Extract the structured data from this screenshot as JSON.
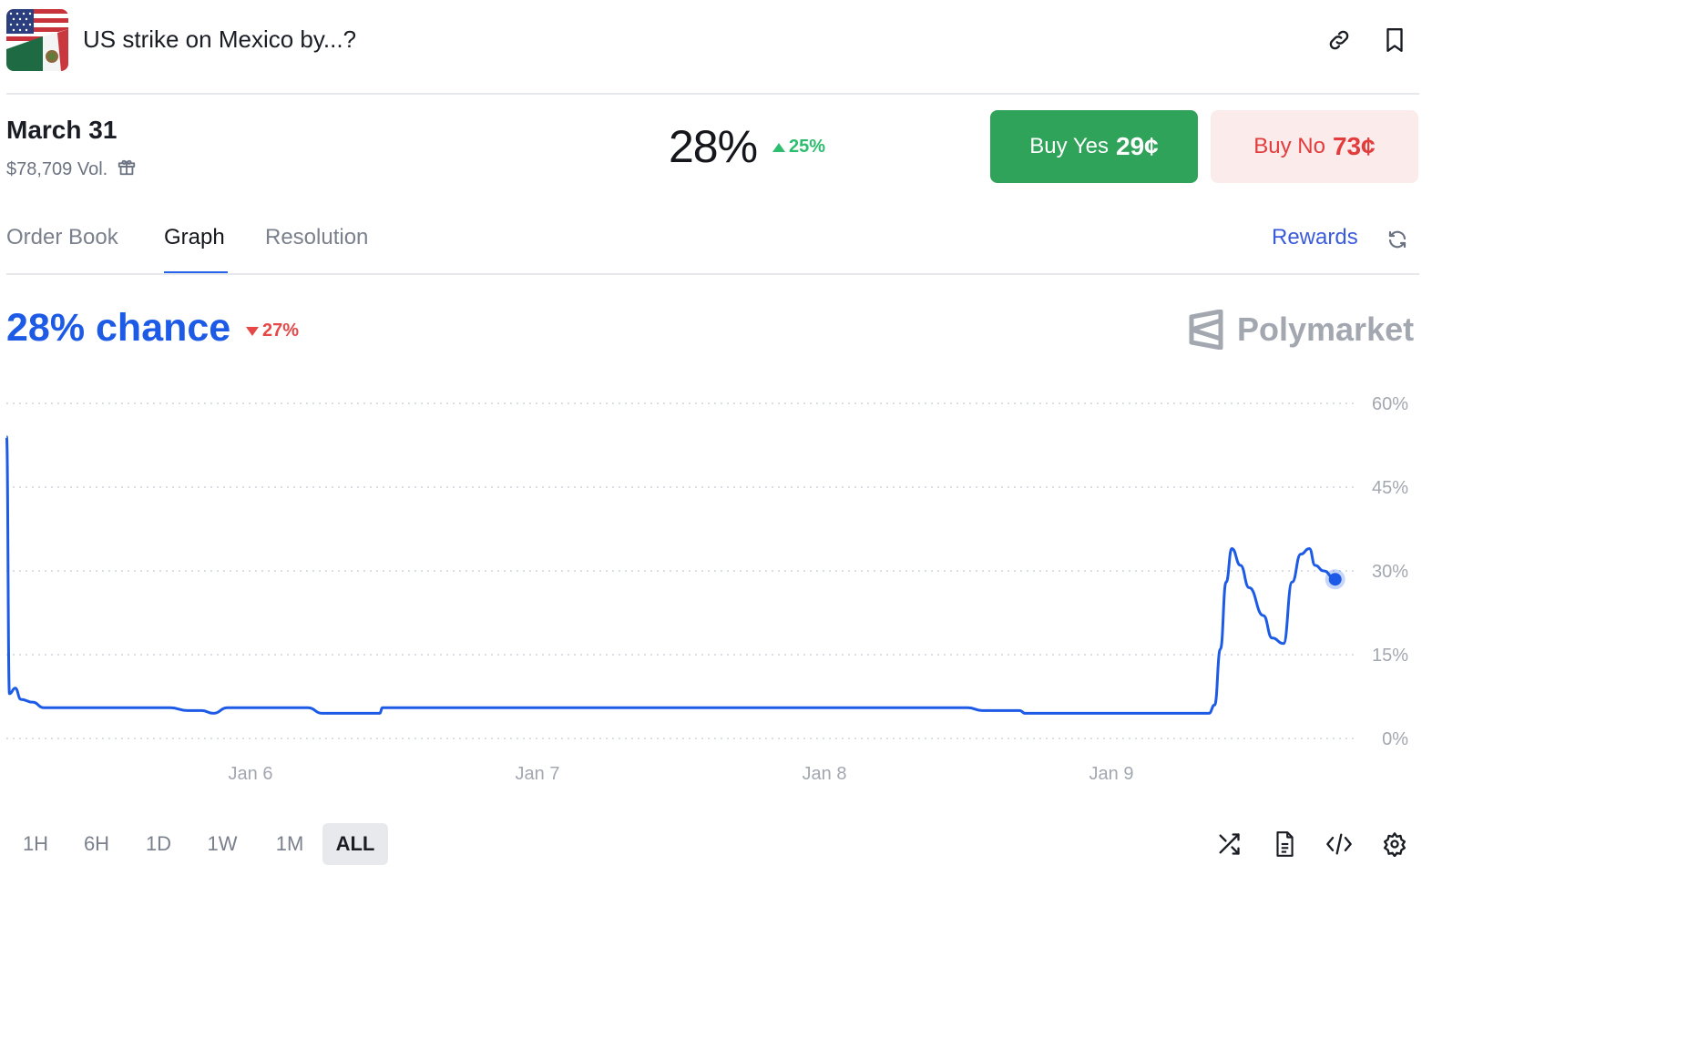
{
  "header": {
    "title": "US strike on Mexico by...?",
    "flag_icon": "us-mexico-flag-icon",
    "link_icon": "link-icon",
    "bookmark_icon": "bookmark-icon"
  },
  "market": {
    "date": "March 31",
    "volume": "$78,709 Vol.",
    "volume_icon": "gift-icon",
    "probability": "28%",
    "change": "25%",
    "change_direction": "up",
    "buy_yes_label": "Buy Yes",
    "buy_yes_price": "29¢",
    "buy_no_label": "Buy No",
    "buy_no_price": "73¢"
  },
  "tabs": {
    "order_book": "Order Book",
    "graph": "Graph",
    "resolution": "Resolution",
    "active": "Graph",
    "rewards": "Rewards",
    "refresh_icon": "refresh-icon"
  },
  "graph": {
    "chance_text": "28% chance",
    "change": "27%",
    "change_direction": "down",
    "brand": "Polymarket"
  },
  "colors": {
    "accent": "#1d5be6",
    "yes": "#30a35a",
    "no": "#e23d3d",
    "up": "#2dbd6e",
    "down": "#e64848"
  },
  "chart_data": {
    "type": "line",
    "y_ticks": [
      "60%",
      "45%",
      "30%",
      "15%",
      "0%"
    ],
    "x_ticks": [
      "Jan 6",
      "Jan 7",
      "Jan 8",
      "Jan 9"
    ],
    "ylim": [
      0,
      60
    ],
    "x_unit_note": "days",
    "grid": true,
    "series": [
      {
        "x": [
          5.15,
          5.16,
          5.18,
          5.2,
          5.24,
          5.28,
          5.35,
          5.5,
          5.65,
          5.72,
          5.78,
          5.83,
          5.87,
          5.92,
          6.0,
          6.1,
          6.2,
          6.25,
          6.45,
          6.46,
          6.6,
          6.8,
          7.0,
          7.5,
          8.0,
          8.5,
          8.55,
          8.68,
          8.7,
          9.0,
          9.2,
          9.3,
          9.34,
          9.36,
          9.38,
          9.4,
          9.42,
          9.45,
          9.48,
          9.53,
          9.56,
          9.6,
          9.63,
          9.66,
          9.69,
          9.71,
          9.74,
          9.78
        ],
        "y": [
          54,
          8,
          9,
          7,
          6.5,
          5.5,
          5.5,
          5.5,
          5.5,
          5.5,
          5,
          5,
          4.5,
          5.5,
          5.5,
          5.5,
          5.5,
          4.5,
          4.5,
          5.5,
          5.5,
          5.5,
          5.5,
          5.5,
          5.5,
          5.5,
          5,
          5,
          4.5,
          4.5,
          4.5,
          4.5,
          4.5,
          6,
          16,
          28,
          34,
          31,
          27,
          22,
          18,
          17,
          28,
          33,
          34,
          31,
          30,
          28.5
        ]
      }
    ],
    "current_value": 28
  },
  "bottom_bar": {
    "ranges": [
      "1H",
      "6H",
      "1D",
      "1W",
      "1M",
      "ALL"
    ],
    "active_range": "ALL",
    "icons": [
      "shuffle-icon",
      "document-icon",
      "code-icon",
      "settings-icon"
    ]
  }
}
